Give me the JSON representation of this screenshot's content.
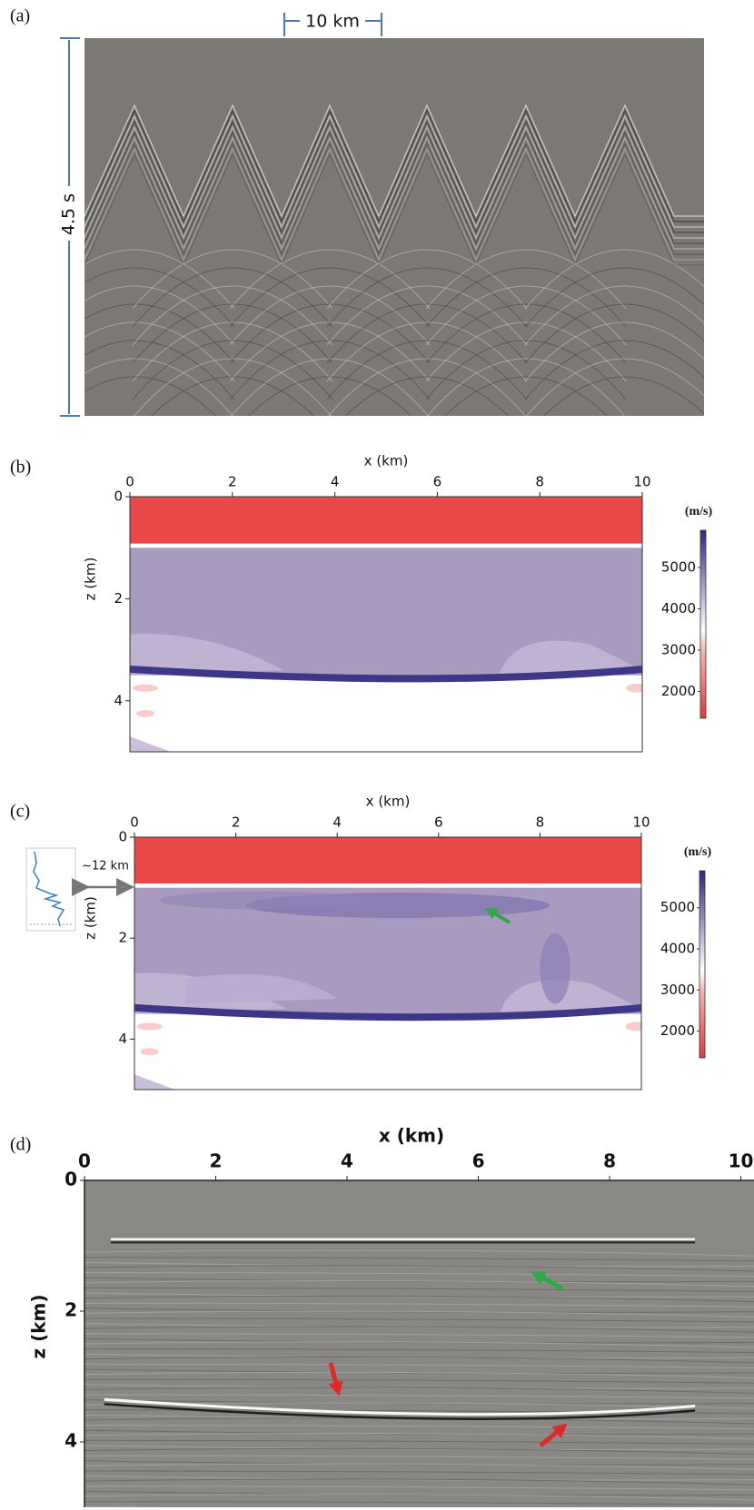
{
  "chart_data": [
    {
      "type": "image",
      "panel": "(a)",
      "scale_bar": "10 km",
      "time_bar": "4.5 s"
    },
    {
      "type": "image",
      "panel": "(b)",
      "xlabel": "x (km)",
      "ylabel": "z (km)",
      "xlim": [
        0,
        10
      ],
      "ylim": [
        0,
        5
      ],
      "xticks": [
        0,
        2,
        4,
        6,
        8,
        10
      ],
      "yticks": [
        0,
        2,
        4
      ],
      "colorbar": {
        "label": "(m/s)",
        "lim": [
          1350,
          5900
        ],
        "ticks": [
          2000,
          3000,
          4000,
          5000
        ]
      }
    },
    {
      "type": "image",
      "panel": "(c)",
      "xlabel": "x (km)",
      "ylabel": "z (km)",
      "xlim": [
        0,
        10
      ],
      "ylim": [
        0,
        5
      ],
      "xticks": [
        0,
        2,
        4,
        6,
        8,
        10
      ],
      "yticks": [
        0,
        2,
        4
      ],
      "annotation": "~12 km",
      "colorbar": {
        "label": "(m/s)",
        "lim": [
          1350,
          5900
        ],
        "ticks": [
          2000,
          3000,
          4000,
          5000
        ]
      }
    },
    {
      "type": "image",
      "panel": "(d)",
      "xlabel": "x (km)",
      "ylabel": "z (km)",
      "xlim": [
        0,
        10.2
      ],
      "ylim": [
        0,
        5
      ],
      "xticks": [
        0,
        2,
        4,
        6,
        8,
        10
      ],
      "yticks": [
        0,
        2,
        4
      ]
    }
  ]
}
